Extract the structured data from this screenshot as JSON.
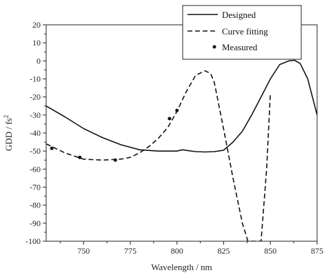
{
  "chart_data": {
    "type": "line",
    "xlabel": "Wavelength / nm",
    "ylabel_main": "GDD / fs",
    "ylabel_sup": "2",
    "xlim": [
      730,
      875
    ],
    "ylim": [
      -100,
      20
    ],
    "xticks": [
      750,
      775,
      800,
      825,
      850,
      875
    ],
    "yticks": [
      20,
      10,
      0,
      -10,
      -20,
      -30,
      -40,
      -50,
      -60,
      -70,
      -80,
      -90,
      -100
    ],
    "grid": false,
    "legend_position": "top-right",
    "series": [
      {
        "name": "Designed",
        "style": "solid",
        "x": [
          730,
          740,
          750,
          760,
          770,
          780,
          790,
          795,
          800,
          803,
          806,
          810,
          815,
          820,
          825,
          830,
          835,
          840,
          845,
          850,
          855,
          860,
          863,
          866,
          870,
          875
        ],
        "y": [
          -25,
          -31,
          -37.5,
          -42.5,
          -46.5,
          -49.3,
          -50,
          -50,
          -50,
          -49.3,
          -49.8,
          -50.3,
          -50.5,
          -50.3,
          -49.5,
          -45,
          -39,
          -30,
          -20,
          -10,
          -2,
          0,
          0.3,
          -1.5,
          -10,
          -30
        ]
      },
      {
        "name": "Curve fitting",
        "style": "dashed",
        "x": [
          730,
          740,
          750,
          760,
          770,
          775,
          780,
          785,
          790,
          795,
          800,
          805,
          810,
          815,
          818,
          820,
          825,
          830,
          835,
          838,
          845,
          848,
          850
        ],
        "y": [
          -46,
          -51,
          -54.5,
          -55,
          -54.5,
          -53.5,
          -51,
          -47.5,
          -43,
          -37,
          -28,
          -17,
          -8,
          -5.5,
          -7,
          -12,
          -38,
          -65,
          -90,
          -100,
          -100,
          -60,
          -18
        ]
      },
      {
        "name": "Measured",
        "style": "points",
        "x": [
          733,
          748,
          767,
          796,
          800
        ],
        "y": [
          -48.5,
          -53.5,
          -55,
          -32,
          -27.5
        ]
      }
    ]
  }
}
